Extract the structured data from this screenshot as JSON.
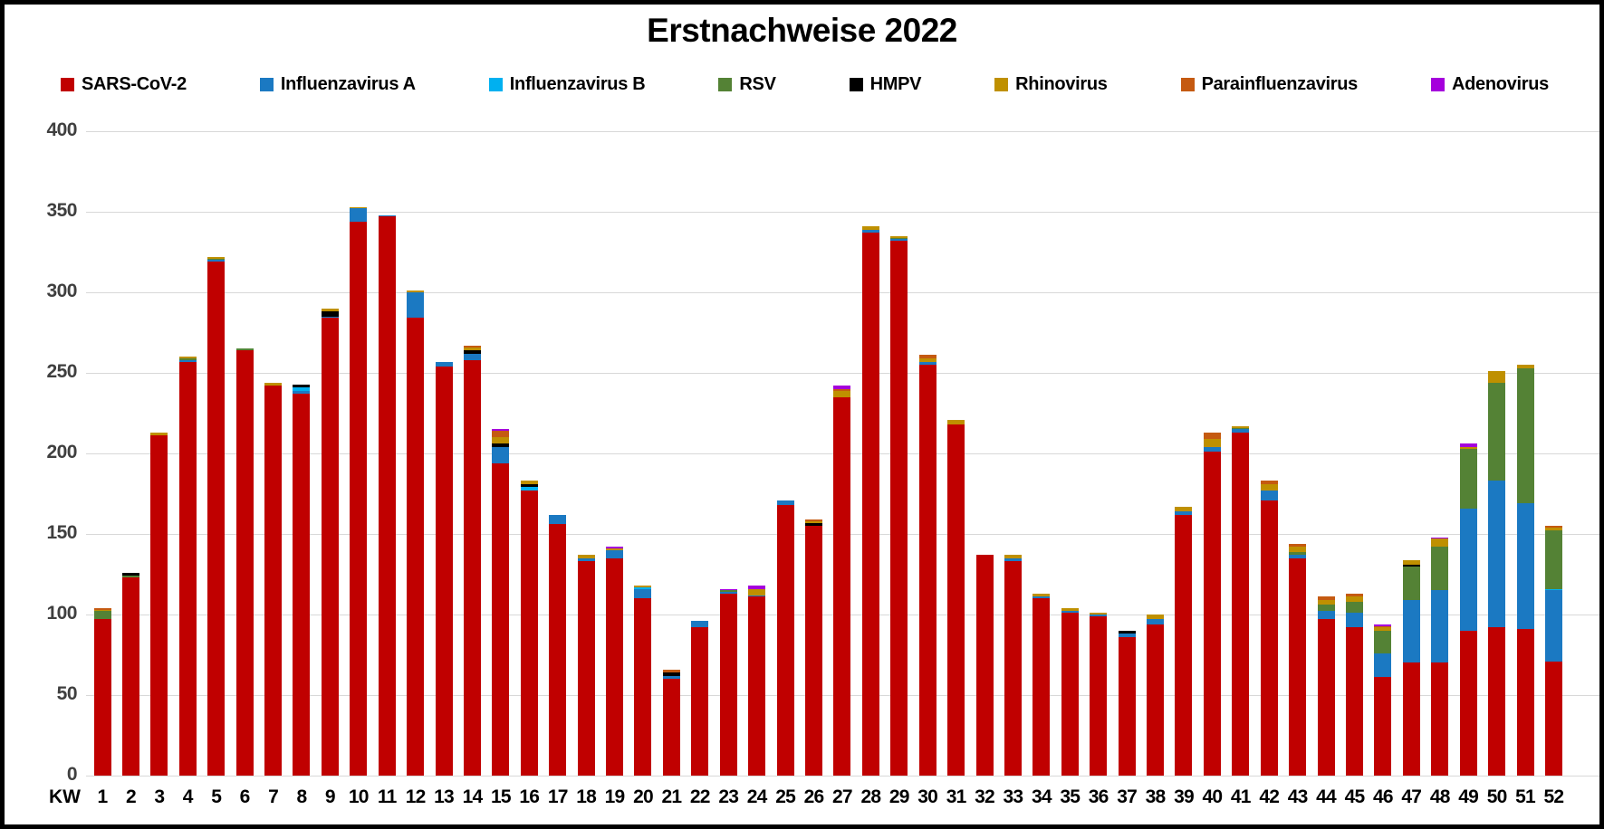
{
  "title": "Erstnachweise 2022",
  "chart_data": {
    "type": "bar",
    "stacked": true,
    "title": "Erstnachweise 2022",
    "x_label_prefix": "KW",
    "categories": [
      1,
      2,
      3,
      4,
      5,
      6,
      7,
      8,
      9,
      10,
      11,
      12,
      13,
      14,
      15,
      16,
      17,
      18,
      19,
      20,
      21,
      22,
      23,
      24,
      25,
      26,
      27,
      28,
      29,
      30,
      31,
      32,
      33,
      34,
      35,
      36,
      37,
      38,
      39,
      40,
      41,
      42,
      43,
      44,
      45,
      46,
      47,
      48,
      49,
      50,
      51,
      52
    ],
    "ylim": [
      0,
      400
    ],
    "y_tick_step": 50,
    "y_ticks": [
      0,
      50,
      100,
      150,
      200,
      250,
      300,
      350,
      400
    ],
    "grid": true,
    "legend_position": "top",
    "series": [
      {
        "name": "SARS-CoV-2",
        "color": "#c00000",
        "values": [
          97,
          123,
          211,
          257,
          319,
          264,
          242,
          237,
          284,
          344,
          347,
          284,
          254,
          258,
          194,
          177,
          156,
          133,
          135,
          110,
          60,
          92,
          113,
          111,
          168,
          155,
          235,
          337,
          332,
          255,
          218,
          137,
          133,
          110,
          101,
          99,
          86,
          94,
          162,
          201,
          213,
          171,
          135,
          97,
          92,
          61,
          70,
          70,
          90,
          92,
          91,
          71
        ]
      },
      {
        "name": "Influenzavirus A",
        "color": "#1b79c2",
        "values": [
          0,
          0,
          0,
          1,
          1,
          0,
          0,
          2,
          1,
          8,
          1,
          16,
          3,
          4,
          10,
          0,
          6,
          2,
          5,
          6,
          2,
          4,
          1,
          1,
          3,
          0,
          0,
          2,
          1,
          2,
          0,
          0,
          2,
          1,
          1,
          1,
          2,
          3,
          2,
          3,
          2,
          6,
          2,
          5,
          9,
          15,
          39,
          45,
          76,
          91,
          78,
          44
        ]
      },
      {
        "name": "Influenzavirus B",
        "color": "#00b0f0",
        "values": [
          0,
          0,
          0,
          0,
          0,
          0,
          0,
          2,
          0,
          0,
          0,
          0,
          0,
          0,
          0,
          2,
          0,
          0,
          0,
          1,
          0,
          0,
          0,
          0,
          0,
          0,
          0,
          0,
          0,
          0,
          0,
          0,
          0,
          0,
          0,
          0,
          0,
          0,
          0,
          0,
          0,
          0,
          0,
          0,
          0,
          0,
          0,
          0,
          0,
          0,
          0,
          1
        ]
      },
      {
        "name": "RSV",
        "color": "#548235",
        "values": [
          5,
          1,
          0,
          1,
          1,
          1,
          0,
          0,
          0,
          0,
          0,
          0,
          0,
          0,
          0,
          0,
          0,
          0,
          0,
          0,
          0,
          0,
          1,
          0,
          0,
          0,
          0,
          0,
          1,
          0,
          0,
          0,
          0,
          0,
          0,
          0,
          0,
          0,
          0,
          0,
          1,
          0,
          2,
          4,
          7,
          14,
          21,
          27,
          37,
          61,
          84,
          36
        ]
      },
      {
        "name": "HMPV",
        "color": "#000000",
        "values": [
          0,
          2,
          0,
          0,
          0,
          0,
          0,
          2,
          3,
          0,
          0,
          0,
          0,
          2,
          2,
          2,
          0,
          0,
          0,
          0,
          2,
          0,
          0,
          0,
          0,
          2,
          0,
          0,
          0,
          0,
          0,
          0,
          0,
          0,
          0,
          0,
          2,
          0,
          0,
          0,
          0,
          0,
          0,
          0,
          0,
          0,
          1,
          0,
          0,
          0,
          0,
          0
        ]
      },
      {
        "name": "Rhinovirus",
        "color": "#bf9000",
        "values": [
          1,
          0,
          2,
          1,
          1,
          0,
          2,
          0,
          2,
          1,
          0,
          1,
          0,
          2,
          4,
          2,
          0,
          2,
          1,
          1,
          0,
          0,
          0,
          4,
          0,
          1,
          4,
          2,
          1,
          2,
          3,
          0,
          2,
          2,
          2,
          1,
          0,
          3,
          3,
          5,
          1,
          4,
          3,
          3,
          3,
          2,
          3,
          5,
          1,
          7,
          2,
          2
        ]
      },
      {
        "name": "Parainfluenzavirus",
        "color": "#c55a11",
        "values": [
          1,
          0,
          0,
          0,
          0,
          0,
          0,
          0,
          0,
          0,
          0,
          0,
          0,
          1,
          4,
          0,
          0,
          0,
          0,
          0,
          2,
          0,
          0,
          0,
          0,
          1,
          1,
          0,
          0,
          2,
          0,
          0,
          0,
          0,
          0,
          0,
          0,
          0,
          0,
          4,
          0,
          2,
          2,
          2,
          2,
          1,
          0,
          0,
          0,
          0,
          0,
          1
        ]
      },
      {
        "name": "Adenovirus",
        "color": "#a500dc",
        "values": [
          0,
          0,
          0,
          0,
          0,
          0,
          0,
          0,
          0,
          0,
          0,
          0,
          0,
          0,
          1,
          0,
          0,
          0,
          1,
          0,
          0,
          0,
          1,
          2,
          0,
          0,
          2,
          0,
          0,
          0,
          0,
          0,
          0,
          0,
          0,
          0,
          0,
          0,
          0,
          0,
          0,
          0,
          0,
          0,
          0,
          1,
          0,
          1,
          2,
          0,
          0,
          0
        ]
      }
    ]
  }
}
